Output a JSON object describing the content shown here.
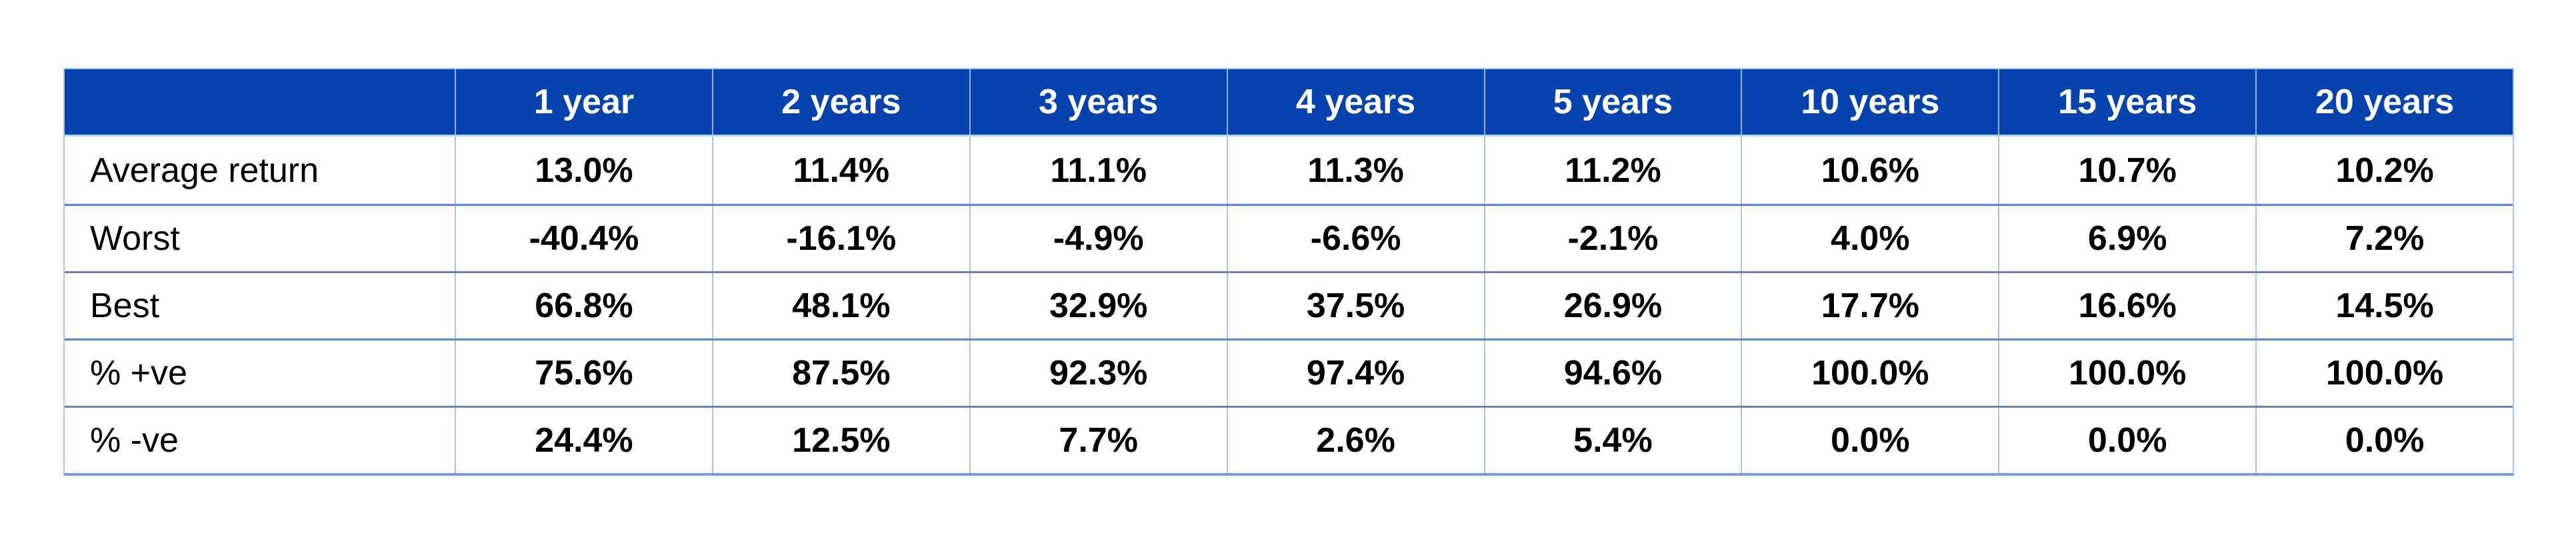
{
  "page": {
    "background": "#ffffff"
  },
  "chart_data": {
    "type": "table",
    "title": "",
    "corner_label": "",
    "columns": [
      "1 year",
      "2 years",
      "3 years",
      "4 years",
      "5 years",
      "10 years",
      "15 years",
      "20 years"
    ],
    "rows": [
      {
        "label": "Average return",
        "values": [
          "13.0%",
          "11.4%",
          "11.1%",
          "11.3%",
          "11.2%",
          "10.6%",
          "10.7%",
          "10.2%"
        ]
      },
      {
        "label": "Worst",
        "values": [
          "-40.4%",
          "-16.1%",
          "-4.9%",
          "-6.6%",
          "-2.1%",
          "4.0%",
          "6.9%",
          "7.2%"
        ]
      },
      {
        "label": "Best",
        "values": [
          "66.8%",
          "48.1%",
          "32.9%",
          "37.5%",
          "26.9%",
          "17.7%",
          "16.6%",
          "14.5%"
        ]
      },
      {
        "label": "% +ve",
        "values": [
          "75.6%",
          "87.5%",
          "92.3%",
          "97.4%",
          "94.6%",
          "100.0%",
          "100.0%",
          "100.0%"
        ]
      },
      {
        "label": "% -ve",
        "values": [
          "24.4%",
          "12.5%",
          "7.7%",
          "2.6%",
          "5.4%",
          "0.0%",
          "0.0%",
          "0.0%"
        ]
      }
    ],
    "layout": {
      "header_position": "top",
      "grid": true,
      "label_column_alignment": "left",
      "value_alignment": "center",
      "header_text_bold": true,
      "value_text_bold": true
    },
    "colors": {
      "header_background": "#0643ae",
      "header_text": "#ffffff",
      "body_text": "#000000",
      "row_divider": "#5f83d6",
      "column_divider": "#aac4ee",
      "header_column_divider": "#8db3e8",
      "header_bottom_divider": "#b4d4f2",
      "outer_border": "#a9c6ee",
      "bottom_border": "#7b99de"
    }
  }
}
